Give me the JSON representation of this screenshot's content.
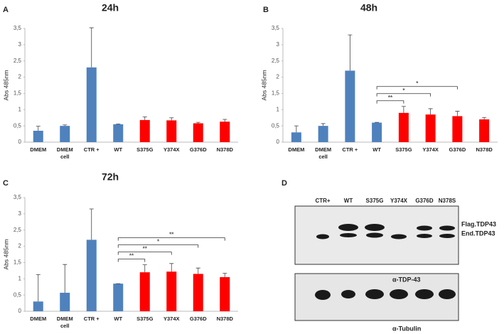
{
  "chart_data": [
    {
      "type": "bar",
      "panel": "A",
      "title": "24h",
      "y_label": "Abs 485nm",
      "categories": [
        "DMEM",
        "DMEM\ncell",
        "CTR +",
        "WT",
        "S375G",
        "Y374X",
        "G376D",
        "N378D"
      ],
      "values": [
        0.35,
        0.5,
        2.3,
        0.55,
        0.68,
        0.67,
        0.58,
        0.63
      ],
      "errors": [
        0.14,
        0.03,
        1.22,
        0.01,
        0.1,
        0.08,
        0.03,
        0.07
      ],
      "colors": [
        "#4f81bd",
        "#4f81bd",
        "#4f81bd",
        "#4f81bd",
        "#ff0000",
        "#ff0000",
        "#ff0000",
        "#ff0000"
      ],
      "ylim": [
        0,
        3.5
      ],
      "yticks": [
        0,
        {
          "value": 0.5,
          "label": "0,5"
        },
        1,
        {
          "value": 1.5,
          "label": "1,5"
        },
        2,
        {
          "value": 2.5,
          "label": "2,5"
        },
        3,
        {
          "value": 3.5,
          "label": "3,5"
        }
      ],
      "significance": []
    },
    {
      "type": "bar",
      "panel": "B",
      "title": "48h",
      "y_label": "Abs 485nm",
      "categories": [
        "DMEM",
        "DMEM\ncell",
        "CTR +",
        "WT",
        "S375G",
        "Y374X",
        "G376D",
        "N378D"
      ],
      "values": [
        0.3,
        0.5,
        2.2,
        0.6,
        0.9,
        0.85,
        0.8,
        0.7
      ],
      "errors": [
        0.2,
        0.07,
        1.1,
        0.01,
        0.2,
        0.18,
        0.15,
        0.06
      ],
      "colors": [
        "#4f81bd",
        "#4f81bd",
        "#4f81bd",
        "#4f81bd",
        "#ff0000",
        "#ff0000",
        "#ff0000",
        "#ff0000"
      ],
      "ylim": [
        0,
        3.5
      ],
      "yticks": [
        0,
        {
          "value": 0.5,
          "label": "0,5"
        },
        1,
        {
          "value": 1.5,
          "label": "1,5"
        },
        2,
        {
          "value": 2.5,
          "label": "2,5"
        },
        3,
        {
          "value": 3.5,
          "label": "3,5"
        }
      ],
      "significance": [
        {
          "start": "WT",
          "end": "S375G",
          "label": "**"
        },
        {
          "start": "WT",
          "end": "Y374X",
          "label": "*"
        },
        {
          "start": "WT",
          "end": "G376D",
          "label": "*"
        }
      ]
    },
    {
      "type": "bar",
      "panel": "C",
      "title": "72h",
      "y_label": "Abs 485nm",
      "categories": [
        "DMEM",
        "DMEM\ncell",
        "CTR +",
        "WT",
        "S375G",
        "Y374X",
        "G376D",
        "N378D"
      ],
      "values": [
        0.3,
        0.57,
        2.2,
        0.85,
        1.2,
        1.22,
        1.15,
        1.05
      ],
      "errors": [
        0.83,
        0.87,
        0.95,
        0,
        0.23,
        0.25,
        0.18,
        0.12
      ],
      "colors": [
        "#4f81bd",
        "#4f81bd",
        "#4f81bd",
        "#4f81bd",
        "#ff0000",
        "#ff0000",
        "#ff0000",
        "#ff0000"
      ],
      "ylim": [
        0,
        3.5
      ],
      "yticks": [
        0,
        {
          "value": 0.5,
          "label": "0,5"
        },
        1,
        {
          "value": 1.5,
          "label": "1,5"
        },
        2,
        {
          "value": 2.5,
          "label": "2,5"
        },
        3,
        {
          "value": 3.5,
          "label": "3,5"
        }
      ],
      "significance": [
        {
          "start": "WT",
          "end": "S375G",
          "label": "**"
        },
        {
          "start": "WT",
          "end": "Y374X",
          "label": "**"
        },
        {
          "start": "WT",
          "end": "G376D",
          "label": "*"
        },
        {
          "start": "WT",
          "end": "N378D",
          "label": "**"
        }
      ]
    }
  ],
  "blot": {
    "panel": "D",
    "lanes": [
      "CTR+",
      "WT",
      "S375G",
      "Y374X",
      "G376D",
      "N378S"
    ],
    "band_labels": [
      "Flag.TDP43",
      "End.TDP43"
    ],
    "antibodies": [
      "α-TDP-43",
      "α-Tubulin"
    ]
  }
}
